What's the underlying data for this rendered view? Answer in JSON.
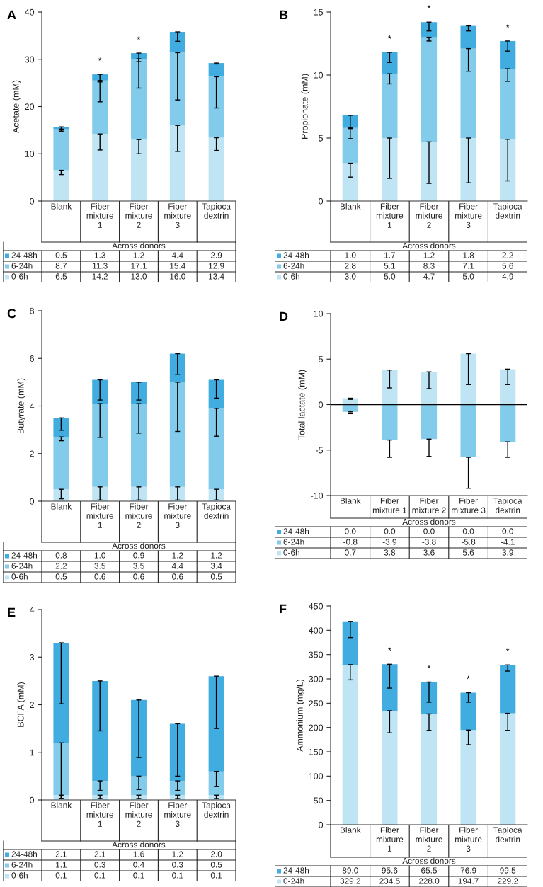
{
  "chart_data": [
    {
      "type": "bar",
      "title": "A",
      "ylabel": "Acetate (mM)",
      "xlabel": "Across donors",
      "stacked": true,
      "legend": "bottom",
      "ylim": [
        0,
        40
      ],
      "yticks": [
        0,
        10,
        20,
        30,
        40
      ],
      "categories": [
        "Blank",
        "Fiber\nmixture\n1",
        "Fiber\nmixture\n2",
        "Fiber\nmixture\n3",
        "Tapioca\ndextrin"
      ],
      "series": [
        {
          "name": "0-6h",
          "color": "#bfe4f4",
          "values": [
            6.5,
            14.2,
            13.0,
            16.0,
            13.4
          ],
          "value_labels": [
            "6.5",
            "14.2",
            "13.0",
            "16.0",
            "13.4"
          ],
          "errors": [
            [
              5.6,
              6.5
            ],
            [
              10.8,
              14.2
            ],
            [
              10.0,
              13.0
            ],
            [
              10.5,
              16.0
            ],
            [
              10.7,
              13.4
            ]
          ]
        },
        {
          "name": "6-24h",
          "color": "#82cbea",
          "values": [
            8.7,
            11.3,
            17.1,
            15.4,
            12.9
          ],
          "value_labels": [
            "8.7",
            "11.3",
            "17.1",
            "15.4",
            "12.9"
          ],
          "errors": [
            [
              14.8,
              15.2
            ],
            [
              21.0,
              25.5
            ],
            [
              23.9,
              30.1
            ],
            [
              21.4,
              31.4
            ],
            [
              19.7,
              26.3
            ]
          ]
        },
        {
          "name": "24-48h",
          "color": "#41ace0",
          "values": [
            0.5,
            1.3,
            1.2,
            4.4,
            2.9
          ],
          "value_labels": [
            "0.5",
            "1.3",
            "1.2",
            "4.4",
            "2.9"
          ],
          "errors": [
            [
              15.2,
              15.7
            ],
            [
              25.2,
              26.8
            ],
            [
              29.5,
              31.3
            ],
            [
              33.8,
              35.8
            ],
            [
              29.0,
              29.2
            ]
          ]
        }
      ],
      "annotations": [
        {
          "text": "*",
          "x": "Fiber\nmixture\n1",
          "y": 26.8
        },
        {
          "text": "*",
          "x": "Fiber\nmixture\n2",
          "y": 31.3
        }
      ]
    },
    {
      "type": "bar",
      "title": "B",
      "ylabel": "Propionate (mM)",
      "xlabel": "Across donors",
      "stacked": true,
      "legend": "bottom",
      "ylim": [
        0,
        15
      ],
      "yticks": [
        0,
        5,
        10,
        15
      ],
      "categories": [
        "Blank",
        "Fiber\nmixture\n1",
        "Fiber\nmixture\n2",
        "Fiber\nmixture\n3",
        "Tapioca\ndextrin"
      ],
      "series": [
        {
          "name": "0-6h",
          "color": "#bfe4f4",
          "values": [
            3.0,
            5.0,
            4.7,
            5.0,
            4.9
          ],
          "value_labels": [
            "3.0",
            "5.0",
            "4.7",
            "5.0",
            "4.9"
          ],
          "errors": [
            [
              1.9,
              3.0
            ],
            [
              1.8,
              5.0
            ],
            [
              1.4,
              4.7
            ],
            [
              1.45,
              5.0
            ],
            [
              1.6,
              4.9
            ]
          ]
        },
        {
          "name": "6-24h",
          "color": "#82cbea",
          "values": [
            2.8,
            5.1,
            8.3,
            7.1,
            5.6
          ],
          "value_labels": [
            "2.8",
            "5.1",
            "8.3",
            "7.1",
            "5.6"
          ],
          "errors": [
            [
              4.95,
              5.8
            ],
            [
              9.3,
              10.1
            ],
            [
              12.7,
              13.0
            ],
            [
              10.3,
              12.1
            ],
            [
              9.5,
              10.5
            ]
          ]
        },
        {
          "name": "24-48h",
          "color": "#41ace0",
          "values": [
            1.0,
            1.7,
            1.2,
            1.8,
            2.2
          ],
          "value_labels": [
            "1.0",
            "1.7",
            "1.2",
            "1.8",
            "2.2"
          ],
          "errors": [
            [
              5.75,
              6.8
            ],
            [
              11.0,
              11.8
            ],
            [
              13.5,
              14.2
            ],
            [
              13.5,
              13.9
            ],
            [
              11.9,
              12.7
            ]
          ]
        }
      ],
      "annotations": [
        {
          "text": "*",
          "x": "Fiber\nmixture\n1",
          "y": 11.8
        },
        {
          "text": "*",
          "x": "Fiber\nmixture\n2",
          "y": 14.2
        },
        {
          "text": "*",
          "x": "Tapioca\ndextrin",
          "y": 12.7
        }
      ]
    },
    {
      "type": "bar",
      "title": "C",
      "ylabel": "Butyrate (mM)",
      "xlabel": "Across donors",
      "stacked": true,
      "legend": "bottom",
      "ylim": [
        0,
        8
      ],
      "yticks": [
        0,
        2,
        4,
        6,
        8
      ],
      "categories": [
        "Blank",
        "Fiber\nmixture\n1",
        "Fiber\nmixture\n2",
        "Fiber\nmixture\n3",
        "Tapioca\ndextrin"
      ],
      "series": [
        {
          "name": "0-6h",
          "color": "#bfe4f4",
          "values": [
            0.5,
            0.6,
            0.6,
            0.6,
            0.5
          ],
          "value_labels": [
            "0.5",
            "0.6",
            "0.6",
            "0.6",
            "0.5"
          ],
          "errors": [
            [
              0.1,
              0.5
            ],
            [
              0.05,
              0.6
            ],
            [
              0.05,
              0.6
            ],
            [
              0.05,
              0.6
            ],
            [
              0.05,
              0.5
            ]
          ]
        },
        {
          "name": "6-24h",
          "color": "#82cbea",
          "values": [
            2.2,
            3.5,
            3.5,
            4.4,
            3.4
          ],
          "value_labels": [
            "2.2",
            "3.5",
            "3.5",
            "4.4",
            "3.4"
          ],
          "errors": [
            [
              2.54,
              2.7
            ],
            [
              2.68,
              4.1
            ],
            [
              2.86,
              4.1
            ],
            [
              2.93,
              5.0
            ],
            [
              2.73,
              3.9
            ]
          ]
        },
        {
          "name": "24-48h",
          "color": "#41ace0",
          "values": [
            0.8,
            1.0,
            0.9,
            1.2,
            1.2
          ],
          "value_labels": [
            "0.8",
            "1.0",
            "0.9",
            "1.2",
            "1.2"
          ],
          "errors": [
            [
              2.98,
              3.5
            ],
            [
              4.25,
              5.1
            ],
            [
              4.25,
              5.0
            ],
            [
              5.33,
              6.2
            ],
            [
              4.33,
              5.1
            ]
          ]
        }
      ]
    },
    {
      "type": "bar",
      "title": "D",
      "ylabel": "Total lactate (mM)",
      "xlabel": "Across donors",
      "stacked": true,
      "legend": "bottom",
      "ylim": [
        -10,
        10
      ],
      "yticks": [
        -10,
        -5,
        0,
        5,
        10
      ],
      "ref_lines": [
        {
          "axis": "y",
          "value": 0,
          "color": "#000000"
        }
      ],
      "categories": [
        "Blank",
        "Fiber\nmixture 1",
        "Fiber\nmixture 2",
        "Fiber\nmixture 3",
        "Tapioca\ndextrin"
      ],
      "series": [
        {
          "name": "0-6h",
          "color": "#bfe4f4",
          "values": [
            0.7,
            3.8,
            3.6,
            5.6,
            3.9
          ],
          "value_labels": [
            "0.7",
            "3.8",
            "3.6",
            "5.6",
            "3.9"
          ],
          "errors": [
            [
              0.57,
              0.7
            ],
            [
              1.83,
              3.8
            ],
            [
              1.75,
              3.6
            ],
            [
              2.2,
              5.6
            ],
            [
              2.2,
              3.9
            ]
          ]
        },
        {
          "name": "6-24h",
          "color": "#82cbea",
          "values": [
            -0.8,
            -3.9,
            -3.8,
            -5.8,
            -4.1
          ],
          "value_labels": [
            "-0.8",
            "-3.9",
            "-3.8",
            "-5.8",
            "-4.1"
          ],
          "errors": [
            [
              -1.0,
              -0.8
            ],
            [
              -5.8,
              -3.9
            ],
            [
              -5.7,
              -3.8
            ],
            [
              -9.2,
              -5.8
            ],
            [
              -5.8,
              -4.1
            ]
          ]
        },
        {
          "name": "24-48h",
          "color": "#41ace0",
          "values": [
            0.0,
            0.0,
            0.0,
            0.0,
            0.0
          ],
          "value_labels": [
            "0.0",
            "0.0",
            "0.0",
            "0.0",
            "0.0"
          ]
        }
      ]
    },
    {
      "type": "bar",
      "title": "E",
      "ylabel": "BCFA (mM)",
      "xlabel": "Across donors",
      "stacked": true,
      "legend": "bottom",
      "ylim": [
        0,
        4
      ],
      "yticks": [
        0,
        1,
        2,
        3,
        4
      ],
      "categories": [
        "Blank",
        "Fiber\nmixture\n1",
        "Fiber\nmixture\n2",
        "Fiber\nmixture\n3",
        "Tapioca\ndextrin"
      ],
      "series": [
        {
          "name": "0-6h",
          "color": "#bfe4f4",
          "values": [
            0.1,
            0.1,
            0.1,
            0.1,
            0.1
          ],
          "value_labels": [
            "0.1",
            "0.1",
            "0.1",
            "0.1",
            "0.1"
          ],
          "errors": [
            [
              0.03,
              0.1
            ],
            [
              0.03,
              0.1
            ],
            [
              0.03,
              0.1
            ],
            [
              0.03,
              0.1
            ],
            [
              0.03,
              0.1
            ]
          ]
        },
        {
          "name": "6-24h",
          "color": "#82cbea",
          "values": [
            1.1,
            0.3,
            0.4,
            0.3,
            0.5
          ],
          "value_labels": [
            "1.1",
            "0.3",
            "0.4",
            "0.3",
            "0.5"
          ],
          "errors": [
            [
              0.03,
              1.2
            ],
            [
              0.2,
              0.4
            ],
            [
              0.22,
              0.5
            ],
            [
              0.2,
              0.4
            ],
            [
              0.28,
              0.6
            ]
          ]
        },
        {
          "name": "24-48h",
          "color": "#41ace0",
          "values": [
            2.1,
            2.1,
            1.6,
            1.2,
            2.0
          ],
          "value_labels": [
            "2.1",
            "2.1",
            "1.6",
            "1.2",
            "2.0"
          ],
          "errors": [
            [
              2.02,
              3.3
            ],
            [
              1.45,
              2.5
            ],
            [
              0.89,
              2.1
            ],
            [
              0.5,
              1.6
            ],
            [
              1.5,
              2.6
            ]
          ]
        }
      ]
    },
    {
      "type": "bar",
      "title": "F",
      "ylabel": "Ammonium (mg/L)",
      "xlabel": "Across donors",
      "stacked": true,
      "legend": "bottom",
      "ylim": [
        0,
        450
      ],
      "yticks": [
        0,
        50,
        100,
        150,
        200,
        250,
        300,
        350,
        400,
        450
      ],
      "categories": [
        "Blank",
        "Fiber\nmixture\n1",
        "Fiber\nmixture\n2",
        "Fiber\nmixture\n3",
        "Tapioca\ndextrin"
      ],
      "series": [
        {
          "name": "0-24h",
          "color": "#bfe4f4",
          "values": [
            329.2,
            234.5,
            228.0,
            194.7,
            229.2
          ],
          "value_labels": [
            "329.2",
            "234.5",
            "228.0",
            "194.7",
            "229.2"
          ],
          "errors": [
            [
              298,
              329.2
            ],
            [
              189,
              234.5
            ],
            [
              194,
              228.0
            ],
            [
              164.5,
              194.7
            ],
            [
              194,
              229.2
            ]
          ]
        },
        {
          "name": "24-48h",
          "color": "#41ace0",
          "values": [
            89.0,
            95.6,
            65.5,
            76.9,
            99.5
          ],
          "value_labels": [
            "89.0",
            "95.6",
            "65.5",
            "76.9",
            "99.5"
          ],
          "errors": [
            [
              385,
              418.2
            ],
            [
              281,
              330.1
            ],
            [
              252,
              293.5
            ],
            [
              252,
              271.6
            ],
            [
              316,
              328.7
            ]
          ]
        }
      ],
      "annotations": [
        {
          "text": "*",
          "x": "Fiber\nmixture\n1",
          "y": 330.1
        },
        {
          "text": "*",
          "x": "Fiber\nmixture\n2",
          "y": 293.5
        },
        {
          "text": "*",
          "x": "Fiber\nmixture\n3",
          "y": 271.6
        },
        {
          "text": "*",
          "x": "Tapioca\ndextrin",
          "y": 328.7
        }
      ]
    }
  ]
}
